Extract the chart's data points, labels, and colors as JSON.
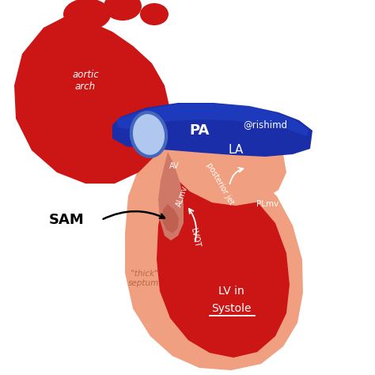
{
  "bg_color": "#ffffff",
  "red_dark": "#cc1515",
  "red_light": "#f0a080",
  "blue_dark": "#1a2eaa",
  "blue_mid": "#2244cc",
  "blue_oval_fill": "#b0c8f0",
  "blue_oval_edge": "#4466bb",
  "white": "#ffffff",
  "black": "#111111",
  "labels": {
    "aortic_arch": "aortic\narch",
    "PA": "PA",
    "watermark": "@rishimd",
    "LA": "LA",
    "AV": "AV",
    "ALMV": "ALmv",
    "posterior_jet": "posterior jet",
    "PLMV": "PLmv",
    "LVOT": "LVOT",
    "SAM": "SAM",
    "thick_septum": "\"thick\"\nseptum",
    "LV_in": "LV in",
    "Systole": "Systole"
  }
}
